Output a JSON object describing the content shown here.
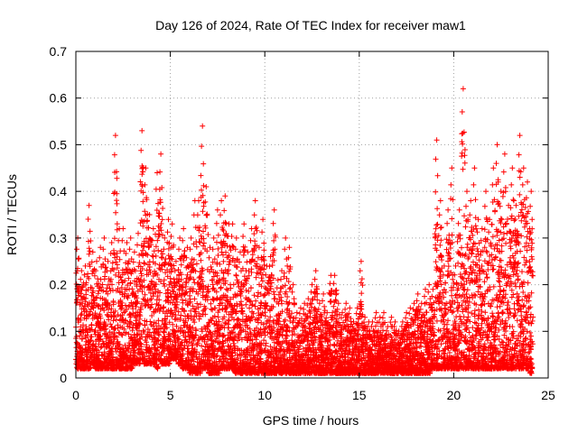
{
  "chart_data": {
    "type": "scatter",
    "title": "Day 126 of 2024, Rate Of TEC Index for receiver maw1",
    "xlabel": "GPS time / hours",
    "ylabel": "ROTI / TECUs",
    "xlim": [
      0,
      25
    ],
    "ylim": [
      0,
      0.7
    ],
    "x_ticks": [
      "0",
      "5",
      "10",
      "15",
      "20",
      "25"
    ],
    "y_ticks": [
      "0",
      "0.1",
      "0.2",
      "0.3",
      "0.4",
      "0.5",
      "0.6",
      "0.7"
    ],
    "grid": true,
    "marker": "+",
    "color": "#ff0000",
    "series": [
      {
        "x": [
          0.0,
          0.2,
          0.4,
          0.6,
          0.8,
          1.0,
          1.2,
          1.4,
          1.6,
          1.8,
          2.0,
          2.2,
          2.4,
          2.6,
          2.8,
          3.0,
          3.2,
          3.4,
          3.6,
          3.8,
          4.0,
          4.2,
          4.4,
          4.6,
          4.8,
          5.0,
          5.2,
          5.4,
          5.6,
          5.8,
          6.0,
          6.2,
          6.4,
          6.6,
          6.8,
          7.0,
          7.2,
          7.4,
          7.6,
          7.8,
          8.0,
          8.2,
          8.4,
          8.6,
          8.8,
          9.0,
          9.2,
          9.4,
          9.6,
          9.8,
          10.0,
          10.2,
          10.4,
          10.6,
          10.8,
          11.0,
          11.2,
          11.4,
          11.6,
          11.8,
          12.0,
          12.2,
          12.4,
          12.6,
          12.8,
          13.0,
          13.2,
          13.4,
          13.6,
          13.8,
          14.0,
          14.2,
          14.4,
          14.6,
          14.8,
          15.0,
          15.2,
          15.4,
          15.6,
          15.8,
          16.0,
          16.2,
          16.4,
          16.6,
          16.8,
          17.0,
          17.2,
          17.4,
          17.6,
          17.8,
          18.0,
          18.2,
          18.4,
          18.6,
          18.8,
          19.0,
          19.2,
          19.4,
          19.6,
          19.8,
          20.0,
          20.2,
          20.4,
          20.6,
          20.8,
          21.0,
          21.2,
          21.4,
          21.6,
          21.8,
          22.0,
          22.2,
          22.4,
          22.6,
          22.8,
          23.0,
          23.2,
          23.4,
          23.6,
          23.8,
          24.0
        ],
        "lows": [
          0.02,
          0.02,
          0.02,
          0.02,
          0.03,
          0.02,
          0.02,
          0.02,
          0.02,
          0.02,
          0.02,
          0.02,
          0.02,
          0.02,
          0.02,
          0.03,
          0.03,
          0.04,
          0.03,
          0.03,
          0.03,
          0.02,
          0.03,
          0.03,
          0.03,
          0.04,
          0.04,
          0.03,
          0.02,
          0.02,
          0.01,
          0.01,
          0.01,
          0.02,
          0.02,
          0.01,
          0.01,
          0.01,
          0.02,
          0.02,
          0.02,
          0.02,
          0.01,
          0.01,
          0.01,
          0.01,
          0.01,
          0.01,
          0.01,
          0.01,
          0.01,
          0.01,
          0.01,
          0.01,
          0.01,
          0.01,
          0.01,
          0.01,
          0.01,
          0.01,
          0.01,
          0.01,
          0.01,
          0.01,
          0.01,
          0.01,
          0.01,
          0.01,
          0.01,
          0.01,
          0.01,
          0.01,
          0.01,
          0.01,
          0.01,
          0.01,
          0.01,
          0.01,
          0.01,
          0.01,
          0.01,
          0.01,
          0.01,
          0.01,
          0.01,
          0.01,
          0.01,
          0.01,
          0.01,
          0.01,
          0.01,
          0.01,
          0.01,
          0.01,
          0.02,
          0.02,
          0.02,
          0.02,
          0.02,
          0.02,
          0.02,
          0.02,
          0.02,
          0.02,
          0.02,
          0.02,
          0.02,
          0.02,
          0.02,
          0.02,
          0.02,
          0.02,
          0.02,
          0.02,
          0.02,
          0.02,
          0.02,
          0.02,
          0.02,
          0.02,
          0.01
        ],
        "highs": [
          0.3,
          0.23,
          0.24,
          0.37,
          0.27,
          0.25,
          0.28,
          0.3,
          0.25,
          0.29,
          0.52,
          0.32,
          0.32,
          0.29,
          0.3,
          0.27,
          0.31,
          0.53,
          0.45,
          0.35,
          0.32,
          0.44,
          0.48,
          0.3,
          0.34,
          0.33,
          0.25,
          0.3,
          0.32,
          0.28,
          0.3,
          0.38,
          0.38,
          0.54,
          0.41,
          0.28,
          0.3,
          0.36,
          0.38,
          0.39,
          0.33,
          0.33,
          0.3,
          0.27,
          0.33,
          0.27,
          0.32,
          0.38,
          0.28,
          0.34,
          0.24,
          0.26,
          0.36,
          0.21,
          0.23,
          0.3,
          0.28,
          0.2,
          0.14,
          0.15,
          0.16,
          0.17,
          0.2,
          0.23,
          0.16,
          0.18,
          0.14,
          0.22,
          0.22,
          0.16,
          0.14,
          0.16,
          0.15,
          0.12,
          0.15,
          0.25,
          0.13,
          0.12,
          0.12,
          0.14,
          0.13,
          0.14,
          0.11,
          0.13,
          0.12,
          0.1,
          0.12,
          0.14,
          0.15,
          0.16,
          0.18,
          0.16,
          0.19,
          0.2,
          0.19,
          0.51,
          0.38,
          0.24,
          0.36,
          0.45,
          0.24,
          0.36,
          0.62,
          0.4,
          0.38,
          0.45,
          0.34,
          0.32,
          0.4,
          0.34,
          0.45,
          0.5,
          0.4,
          0.48,
          0.37,
          0.45,
          0.37,
          0.52,
          0.45,
          0.42,
          0.4
        ]
      }
    ]
  }
}
